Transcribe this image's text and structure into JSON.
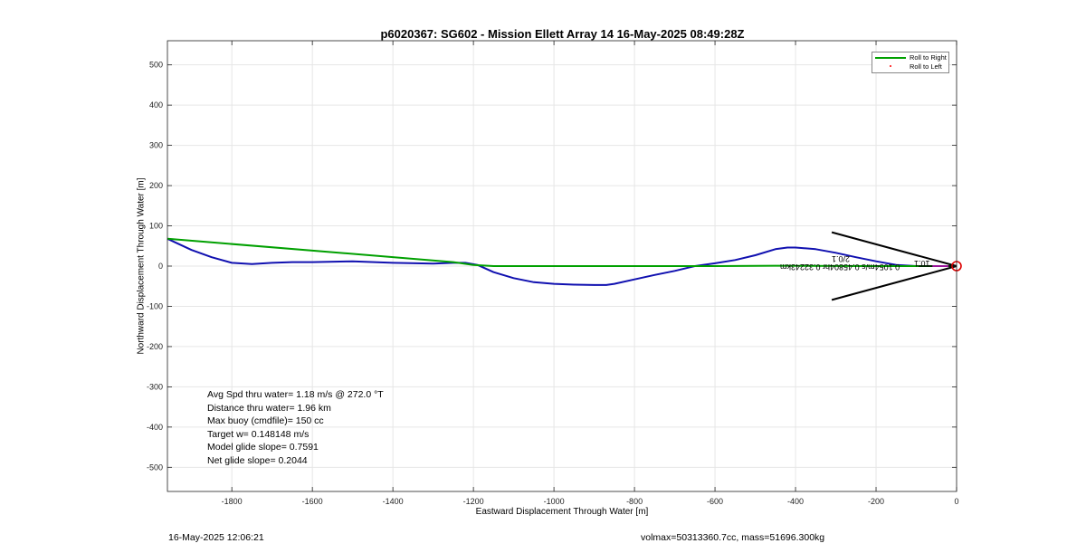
{
  "chart_data": {
    "type": "line",
    "title": "p6020367: SG602 - Mission Ellett Array 14 16-May-2025 08:49:28Z",
    "xlabel": "Eastward Displacement Through Water [m]",
    "ylabel": "Northward Displacement Through Water [m]",
    "xlim": [
      -1960,
      0
    ],
    "ylim": [
      -560,
      560
    ],
    "xticks": [
      -1800,
      -1600,
      -1400,
      -1200,
      -1000,
      -800,
      -600,
      -400,
      -200,
      0
    ],
    "yticks": [
      500,
      400,
      300,
      200,
      100,
      0,
      -100,
      -200,
      -300,
      -400,
      -500
    ],
    "grid": true,
    "legend_position": "top-right",
    "legend": [
      {
        "name": "Roll to Right",
        "color": "#00a000",
        "style": "line"
      },
      {
        "name": "Roll to Left",
        "color": "#ff0000",
        "style": "dot"
      }
    ],
    "series": [
      {
        "name": "track",
        "color": "#1010b0",
        "x": [
          -1960,
          -1900,
          -1850,
          -1800,
          -1750,
          -1700,
          -1650,
          -1600,
          -1500,
          -1400,
          -1300,
          -1250,
          -1220,
          -1190,
          -1150,
          -1100,
          -1050,
          -1000,
          -950,
          -900,
          -870,
          -850,
          -800,
          -750,
          -700,
          -650,
          -600,
          -550,
          -500,
          -450,
          -420,
          -400,
          -350,
          -300,
          -250,
          -200,
          -150,
          -100,
          -50,
          0
        ],
        "y": [
          68,
          40,
          22,
          8,
          5,
          8,
          10,
          10,
          12,
          8,
          6,
          8,
          8,
          3,
          -15,
          -30,
          -40,
          -44,
          -46,
          -47,
          -47,
          -44,
          -33,
          -22,
          -12,
          0,
          7,
          15,
          27,
          42,
          46,
          46,
          42,
          33,
          22,
          12,
          3,
          0,
          0,
          0
        ]
      },
      {
        "name": "Roll to Right",
        "color": "#00a000",
        "x": [
          -1960,
          -1250,
          -1200,
          -1150,
          -1000,
          -800,
          -600,
          -450,
          -200,
          0
        ],
        "y": [
          68,
          10,
          3,
          0,
          0,
          0,
          0,
          1,
          0,
          0
        ]
      }
    ],
    "arrow": {
      "tip": [
        0,
        0
      ],
      "head_ends": [
        [
          -310,
          84
        ],
        [
          -310,
          -84
        ]
      ],
      "label_1": "10.1 ",
      "label_2": "0.1054m/s 0.45804hr 0.32243km",
      "label_3": "2/0.1"
    },
    "marker": {
      "x": 0,
      "y": 0,
      "color": "#dd0000",
      "shape": "circle"
    },
    "annotations": [
      "Avg Spd thru water=  1.18 m/s @ 272.0 °T",
      "Distance thru water=  1.96 km",
      "Max buoy (cmdfile)= 150 cc",
      "Target w= 0.148148 m/s",
      "Model glide slope= 0.7591",
      "Net glide slope= 0.2044"
    ]
  },
  "footer": {
    "timestamp": "16-May-2025 12:06:21",
    "summary": "volmax=50313360.7cc, mass=51696.300kg"
  }
}
